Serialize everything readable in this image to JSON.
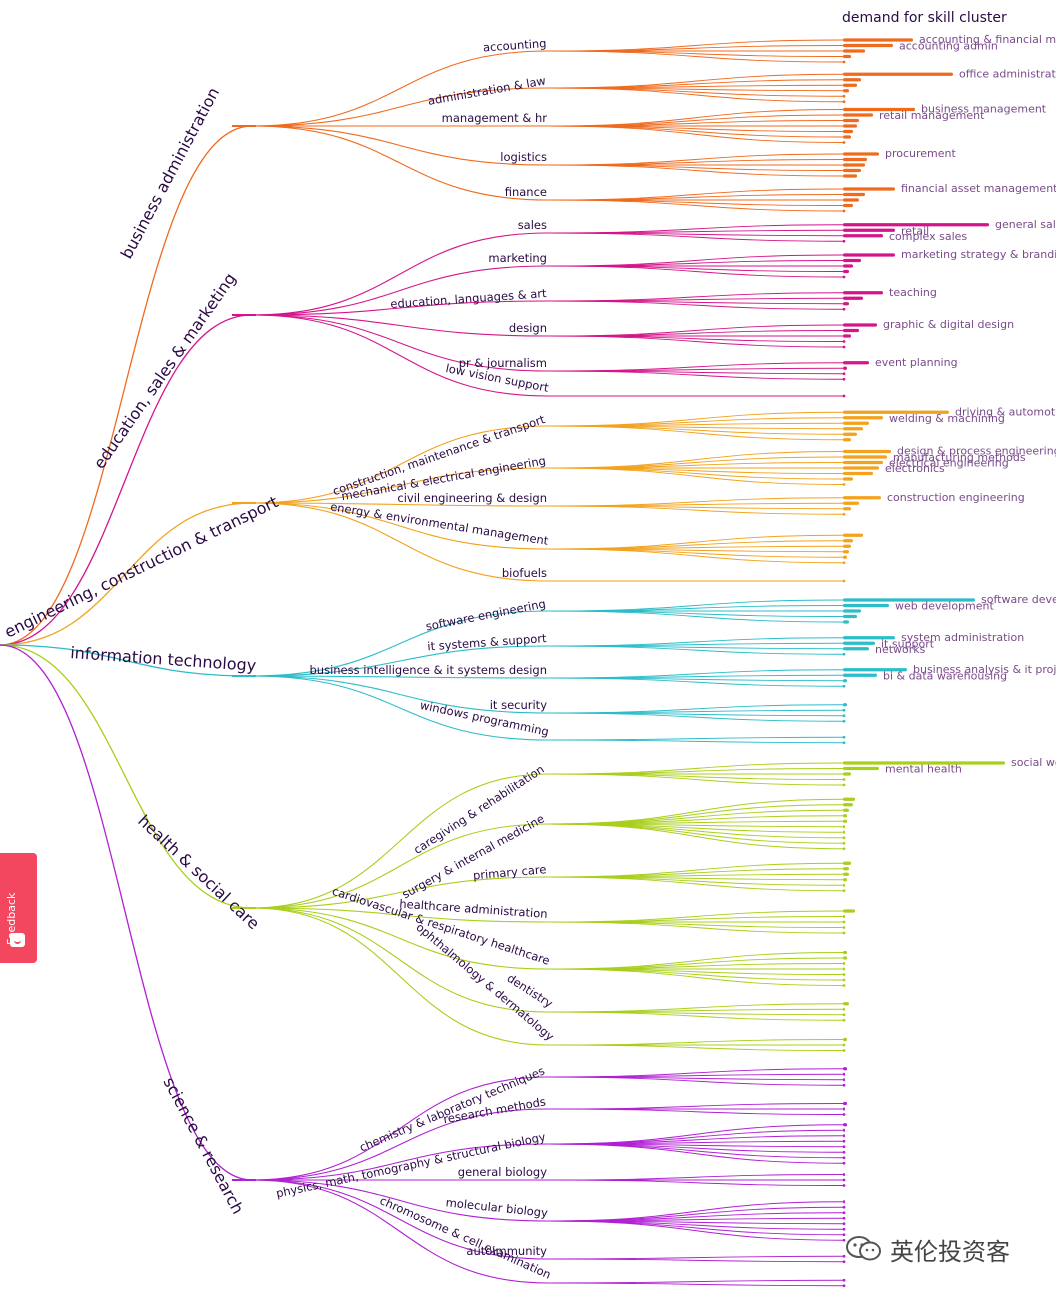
{
  "title": "demand for skill cluster",
  "feedback_label": "Feedback",
  "watermark": "英伦投资客",
  "colors": {
    "business": "#f06a1e",
    "education": "#d4158a",
    "engineering": "#f2a21c",
    "it": "#2bbdc8",
    "health": "#a8cf1a",
    "science": "#b020d4",
    "label_dark": "#2a0a45",
    "label_light": "#7a4b8a"
  },
  "categories": [
    {
      "key": "business",
      "name": "business administration",
      "groups": [
        {
          "name": "accounting",
          "leaves": 5,
          "bars": [
            70,
            50,
            22,
            8,
            0
          ],
          "labels": [
            {
              "text": "accounting & financial management",
              "leaf": 0
            },
            {
              "text": "accounting admin",
              "leaf": 1
            }
          ]
        },
        {
          "name": "administration & law",
          "leaves": 6,
          "bars": [
            110,
            18,
            14,
            6,
            0,
            0
          ],
          "labels": [
            {
              "text": "office administration",
              "leaf": 0
            }
          ]
        },
        {
          "name": "management & hr",
          "leaves": 7,
          "bars": [
            72,
            30,
            16,
            14,
            10,
            8,
            0
          ],
          "labels": [
            {
              "text": "business management",
              "leaf": 0
            },
            {
              "text": "retail management",
              "leaf": 1
            }
          ]
        },
        {
          "name": "logistics",
          "leaves": 5,
          "bars": [
            36,
            24,
            22,
            18,
            14
          ],
          "labels": [
            {
              "text": "procurement",
              "leaf": 0
            }
          ]
        },
        {
          "name": "finance",
          "leaves": 5,
          "bars": [
            52,
            22,
            16,
            10,
            0
          ],
          "labels": [
            {
              "text": "financial asset management",
              "leaf": 0
            }
          ]
        }
      ]
    },
    {
      "key": "education",
      "name": "education, sales & marketing",
      "groups": [
        {
          "name": "sales",
          "leaves": 4,
          "bars": [
            146,
            52,
            40,
            0
          ],
          "labels": [
            {
              "text": "general sales",
              "leaf": 0
            },
            {
              "text": "retail",
              "leaf": 1
            },
            {
              "text": "complex sales",
              "leaf": 2
            }
          ]
        },
        {
          "name": "marketing",
          "leaves": 5,
          "bars": [
            52,
            18,
            10,
            6,
            0
          ],
          "labels": [
            {
              "text": "marketing strategy & branding",
              "leaf": 0
            }
          ]
        },
        {
          "name": "education, languages & art",
          "leaves": 4,
          "bars": [
            40,
            20,
            6,
            0
          ],
          "labels": [
            {
              "text": "teaching",
              "leaf": 0
            }
          ]
        },
        {
          "name": "design",
          "leaves": 5,
          "bars": [
            34,
            16,
            8,
            0,
            0
          ],
          "labels": [
            {
              "text": "graphic & digital design",
              "leaf": 0
            }
          ]
        },
        {
          "name": "pr & journalism",
          "leaves": 4,
          "bars": [
            26,
            4,
            0,
            0
          ],
          "labels": [
            {
              "text": "event planning",
              "leaf": 0
            }
          ]
        },
        {
          "name": "low vision support",
          "leaves": 1,
          "bars": [
            0
          ],
          "labels": []
        }
      ]
    },
    {
      "key": "engineering",
      "name": "engineering, construction & transport",
      "groups": [
        {
          "name": "construction, maintenance & transport",
          "leaves": 6,
          "bars": [
            106,
            40,
            26,
            20,
            14,
            8
          ],
          "labels": [
            {
              "text": "driving & automotive",
              "leaf": 0
            },
            {
              "text": "welding & machining",
              "leaf": 1
            }
          ]
        },
        {
          "name": "mechanical & electrical engineering",
          "leaves": 7,
          "bars": [
            48,
            44,
            40,
            36,
            30,
            10,
            0
          ],
          "labels": [
            {
              "text": "design & process engineering",
              "leaf": 0
            },
            {
              "text": "manufacturing methods",
              "leaf": 1
            },
            {
              "text": "electrical engineering",
              "leaf": 2
            },
            {
              "text": "electronics",
              "leaf": 3
            }
          ]
        },
        {
          "name": "civil engineering & design",
          "leaves": 4,
          "bars": [
            38,
            16,
            8,
            0
          ],
          "labels": [
            {
              "text": "construction engineering",
              "leaf": 0
            }
          ]
        },
        {
          "name": "energy & environmental management",
          "leaves": 6,
          "bars": [
            20,
            10,
            8,
            6,
            4,
            0
          ],
          "labels": []
        },
        {
          "name": "biofuels",
          "leaves": 1,
          "bars": [
            0
          ],
          "labels": []
        }
      ]
    },
    {
      "key": "it",
      "name": "information technology",
      "groups": [
        {
          "name": "software engineering",
          "leaves": 5,
          "bars": [
            132,
            46,
            18,
            14,
            6
          ],
          "labels": [
            {
              "text": "software development",
              "leaf": 0
            },
            {
              "text": "web development",
              "leaf": 1
            }
          ]
        },
        {
          "name": "it systems & support",
          "leaves": 4,
          "bars": [
            52,
            32,
            26,
            0
          ],
          "labels": [
            {
              "text": "system administration",
              "leaf": 0
            },
            {
              "text": "it support",
              "leaf": 1
            },
            {
              "text": "networks",
              "leaf": 2
            }
          ]
        },
        {
          "name": "business intelligence & it systems design",
          "leaves": 4,
          "bars": [
            64,
            34,
            4,
            0
          ],
          "labels": [
            {
              "text": "business analysis & it project management",
              "leaf": 0
            },
            {
              "text": "bi & data warehousing",
              "leaf": 1
            }
          ]
        },
        {
          "name": "it security",
          "leaves": 4,
          "bars": [
            4,
            0,
            0,
            0
          ],
          "labels": []
        },
        {
          "name": "windows programming",
          "leaves": 2,
          "bars": [
            0,
            0
          ],
          "labels": []
        }
      ]
    },
    {
      "key": "health",
      "name": "health & social care",
      "groups": [
        {
          "name": "caregiving & rehabilitation",
          "leaves": 5,
          "bars": [
            162,
            36,
            8,
            0,
            0
          ],
          "labels": [
            {
              "text": "social work",
              "leaf": 0
            },
            {
              "text": "mental health",
              "leaf": 1
            }
          ]
        },
        {
          "name": "surgery & internal medicine",
          "leaves": 10,
          "bars": [
            12,
            10,
            6,
            4,
            4,
            2,
            2,
            0,
            0,
            0
          ],
          "labels": []
        },
        {
          "name": "primary care",
          "leaves": 6,
          "bars": [
            8,
            6,
            6,
            4,
            2,
            0
          ],
          "labels": []
        },
        {
          "name": "healthcare administration",
          "leaves": 5,
          "bars": [
            12,
            2,
            0,
            0,
            0
          ],
          "labels": []
        },
        {
          "name": "cardiovascular & respiratory healthcare",
          "leaves": 7,
          "bars": [
            4,
            4,
            2,
            2,
            0,
            0,
            0
          ],
          "labels": []
        },
        {
          "name": "dentistry",
          "leaves": 4,
          "bars": [
            6,
            2,
            0,
            0
          ],
          "labels": []
        },
        {
          "name": "ophthalmology & dermatology",
          "leaves": 3,
          "bars": [
            4,
            0,
            0
          ],
          "labels": []
        }
      ]
    },
    {
      "key": "science",
      "name": "science & research",
      "groups": [
        {
          "name": "chemistry & laboratory techniques",
          "leaves": 4,
          "bars": [
            4,
            2,
            2,
            0
          ],
          "labels": []
        },
        {
          "name": "research methods",
          "leaves": 3,
          "bars": [
            4,
            2,
            0
          ],
          "labels": []
        },
        {
          "name": "physics, math, tomography & structural biology",
          "leaves": 8,
          "bars": [
            4,
            2,
            2,
            0,
            0,
            0,
            0,
            0
          ],
          "labels": []
        },
        {
          "name": "general biology",
          "leaves": 3,
          "bars": [
            2,
            0,
            0
          ],
          "labels": []
        },
        {
          "name": "molecular biology",
          "leaves": 8,
          "bars": [
            2,
            0,
            0,
            0,
            0,
            0,
            0,
            0
          ],
          "labels": []
        },
        {
          "name": "autoimmunity",
          "leaves": 2,
          "bars": [
            0,
            0
          ],
          "labels": []
        },
        {
          "name": "chromosome & cell examination",
          "leaves": 2,
          "bars": [
            0,
            0
          ],
          "labels": []
        }
      ]
    }
  ]
}
